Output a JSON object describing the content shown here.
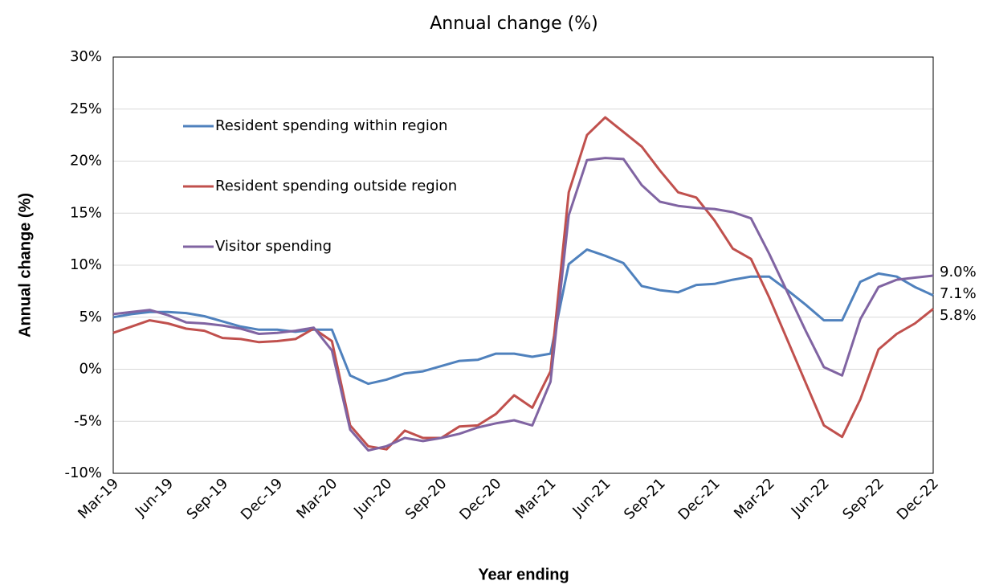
{
  "chart_data": {
    "type": "line",
    "title": "Annual change (%)",
    "y_label": "Annual change (%)",
    "x_label": "Year ending",
    "categories": [
      "Mar-19",
      null,
      null,
      "Jun-19",
      null,
      null,
      "Sep-19",
      null,
      null,
      "Dec-19",
      null,
      null,
      "Mar-20",
      null,
      null,
      "Jun-20",
      null,
      null,
      "Sep-20",
      null,
      null,
      "Dec-20",
      null,
      null,
      "Mar-21",
      null,
      null,
      "Jun-21",
      null,
      null,
      "Sep-21",
      null,
      null,
      "Dec-21",
      null,
      null,
      "Mar-22",
      null,
      null,
      "Jun-22",
      null,
      null,
      "Sep-22",
      null,
      null,
      "Dec-22"
    ],
    "series": [
      {
        "name": "Resident spending within region",
        "color": "#4f81bd",
        "values": [
          5.0,
          5.3,
          5.5,
          5.5,
          5.4,
          5.1,
          4.6,
          4.1,
          3.8,
          3.8,
          3.6,
          3.8,
          3.8,
          -0.6,
          -1.4,
          -1.0,
          -0.4,
          -0.2,
          0.3,
          0.8,
          0.9,
          1.5,
          1.5,
          1.2,
          1.5,
          10.1,
          11.5,
          10.9,
          10.2,
          8.0,
          7.6,
          7.4,
          8.1,
          8.2,
          8.6,
          8.9,
          8.9,
          7.6,
          6.2,
          4.7,
          4.7,
          8.4,
          9.2,
          8.9,
          7.9,
          7.1
        ],
        "value_labels": [
          null,
          null,
          null,
          null,
          null,
          null,
          null,
          null,
          null,
          null,
          null,
          null,
          null,
          null,
          null,
          null,
          null,
          null,
          null,
          null,
          null,
          null,
          null,
          null,
          null,
          null,
          null,
          null,
          null,
          null,
          null,
          null,
          null,
          null,
          null,
          null,
          null,
          null,
          null,
          null,
          null,
          null,
          null,
          null,
          null,
          "7.1%"
        ]
      },
      {
        "name": "Resident spending outside region",
        "color": "#c0504d",
        "values": [
          3.5,
          4.1,
          4.7,
          4.4,
          3.9,
          3.7,
          3.0,
          2.9,
          2.6,
          2.7,
          2.9,
          3.9,
          2.7,
          -5.4,
          -7.4,
          -7.7,
          -5.9,
          -6.6,
          -6.6,
          -5.5,
          -5.4,
          -4.3,
          -2.5,
          -3.7,
          -0.2,
          17.0,
          22.5,
          24.2,
          22.8,
          21.4,
          19.1,
          17.0,
          16.5,
          14.3,
          11.6,
          10.6,
          6.9,
          2.8,
          -1.3,
          -5.4,
          -6.5,
          -2.9,
          1.9,
          3.4,
          4.4,
          5.8
        ],
        "value_labels": [
          null,
          null,
          null,
          null,
          null,
          null,
          null,
          null,
          null,
          null,
          null,
          null,
          null,
          null,
          null,
          null,
          null,
          null,
          null,
          null,
          null,
          null,
          null,
          null,
          null,
          null,
          null,
          null,
          null,
          null,
          null,
          null,
          null,
          null,
          null,
          null,
          null,
          null,
          null,
          null,
          null,
          null,
          null,
          null,
          null,
          "5.8%"
        ]
      },
      {
        "name": "Visitor spending",
        "color": "#8064a2",
        "values": [
          5.3,
          5.5,
          5.7,
          5.2,
          4.5,
          4.4,
          4.2,
          3.9,
          3.4,
          3.5,
          3.7,
          4.0,
          1.8,
          -5.8,
          -7.8,
          -7.4,
          -6.6,
          -6.9,
          -6.6,
          -6.2,
          -5.6,
          -5.2,
          -4.9,
          -5.4,
          -1.2,
          14.8,
          20.1,
          20.3,
          20.2,
          17.7,
          16.1,
          15.7,
          15.5,
          15.4,
          15.1,
          14.5,
          11.1,
          7.4,
          3.7,
          0.2,
          -0.6,
          4.8,
          7.9,
          8.6,
          8.8,
          9.0
        ],
        "value_labels": [
          null,
          null,
          null,
          null,
          null,
          null,
          null,
          null,
          null,
          null,
          null,
          null,
          null,
          null,
          null,
          null,
          null,
          null,
          null,
          null,
          null,
          null,
          null,
          null,
          null,
          null,
          null,
          null,
          null,
          null,
          null,
          null,
          null,
          null,
          null,
          null,
          null,
          null,
          null,
          null,
          null,
          null,
          null,
          null,
          null,
          "9.0%"
        ]
      }
    ],
    "ylim": [
      -10,
      30
    ],
    "yticks": [
      {
        "value": -10,
        "label": "-10%"
      },
      {
        "value": -5,
        "label": "-5%"
      },
      {
        "value": 0,
        "label": "0%"
      },
      {
        "value": 5,
        "label": "5%"
      },
      {
        "value": 10,
        "label": "10%"
      },
      {
        "value": 15,
        "label": "15%"
      },
      {
        "value": 20,
        "label": "20%"
      },
      {
        "value": 25,
        "label": "25%"
      },
      {
        "value": 30,
        "label": "30%"
      }
    ],
    "grid": true,
    "legend": "upper left"
  }
}
